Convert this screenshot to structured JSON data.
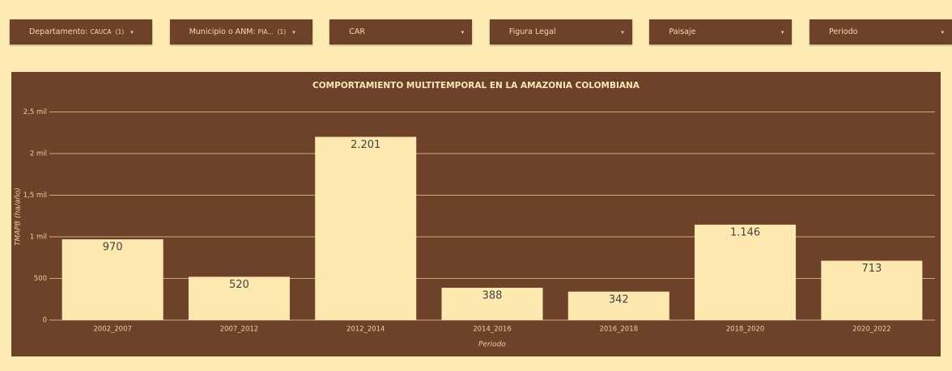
{
  "filters": [
    {
      "label": "Departamento:",
      "value": "CAUCA",
      "count": "(1)"
    },
    {
      "label": "Municipio o ANM:",
      "value": "PIA...",
      "count": "(1)"
    },
    {
      "label": "CAR"
    },
    {
      "label": "Figura Legal"
    },
    {
      "label": "Paisaje"
    },
    {
      "label": "Periodo"
    }
  ],
  "chart_data": {
    "type": "bar",
    "title": "COMPORTAMIENTO MULTITEMPORAL EN LA AMAZONIA COLOMBIANA",
    "x_label": "Periodo",
    "y_label": "TMAPB (ha/año)",
    "categories": [
      "2002_2007",
      "2007_2012",
      "2012_2014",
      "2014_2016",
      "2016_2018",
      "2018_2020",
      "2020_2022"
    ],
    "values": [
      970,
      520,
      2201,
      388,
      342,
      1146,
      713
    ],
    "value_labels": [
      "970",
      "520",
      "2.201",
      "388",
      "342",
      "1.146",
      "713"
    ],
    "color": "#fde8b0",
    "ylim": [
      0,
      2500
    ],
    "yticks": [
      0,
      500,
      {
        "value": 1000,
        "label": "1 mil"
      },
      {
        "value": 1500,
        "label": "1,5 mil"
      },
      {
        "value": 2000,
        "label": "2 mil"
      },
      {
        "value": 2500,
        "label": "2,5 mil"
      }
    ],
    "grid": true
  }
}
